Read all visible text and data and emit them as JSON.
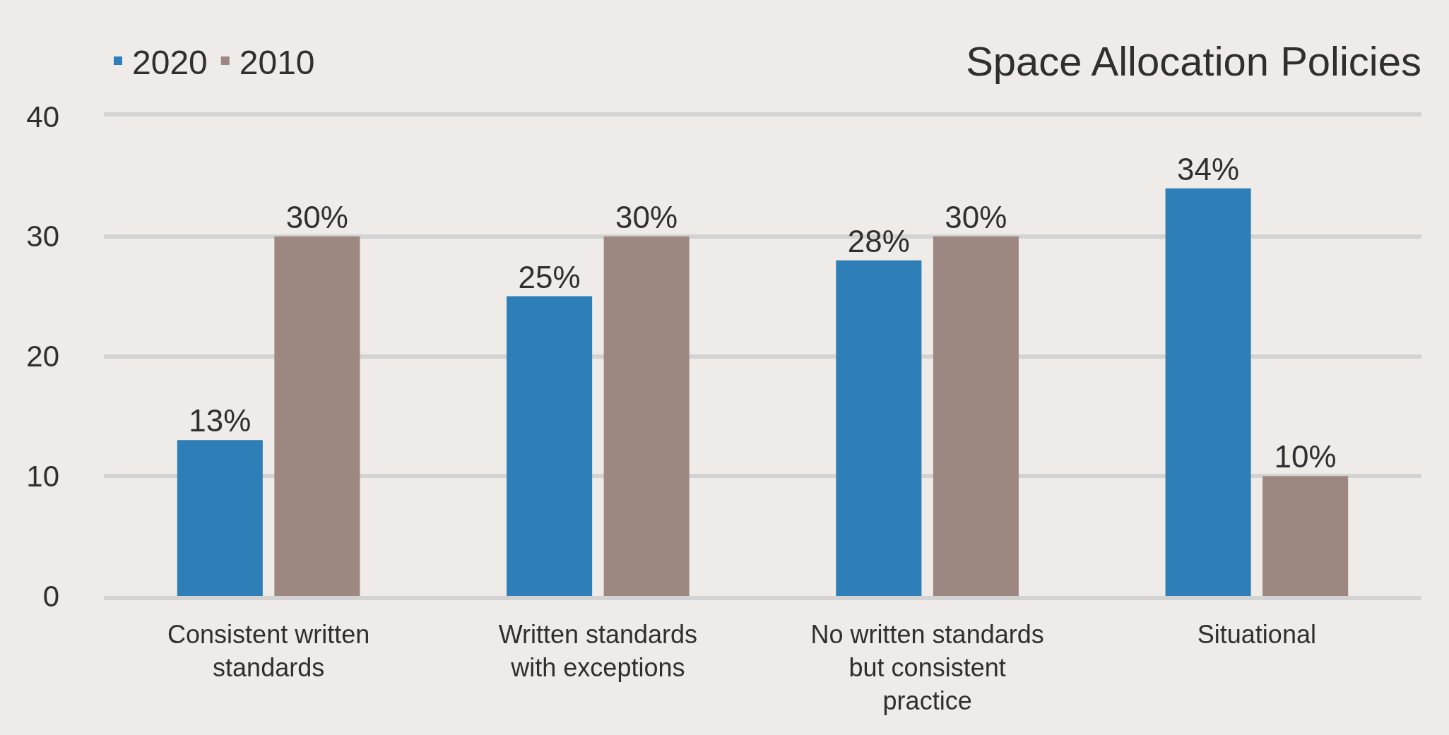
{
  "chart_data": {
    "type": "bar",
    "title": "Space Allocation Policies",
    "categories": [
      "Consistent written standards",
      "Written standards with exceptions",
      "No written standards but consistent practice",
      "Situational"
    ],
    "series": [
      {
        "name": "2020",
        "color": "#2e7fb8",
        "values": [
          13,
          25,
          28,
          34
        ],
        "value_labels": [
          "13%",
          "25%",
          "28%",
          "34%"
        ]
      },
      {
        "name": "2010",
        "color": "#9c8880",
        "values": [
          30,
          30,
          30,
          10
        ],
        "value_labels": [
          "30%",
          "30%",
          "30%",
          "10%"
        ]
      }
    ],
    "ylim": [
      0,
      40
    ],
    "yticks": [
      0,
      10,
      20,
      30,
      40
    ],
    "grid": "y",
    "legend": "top left"
  }
}
